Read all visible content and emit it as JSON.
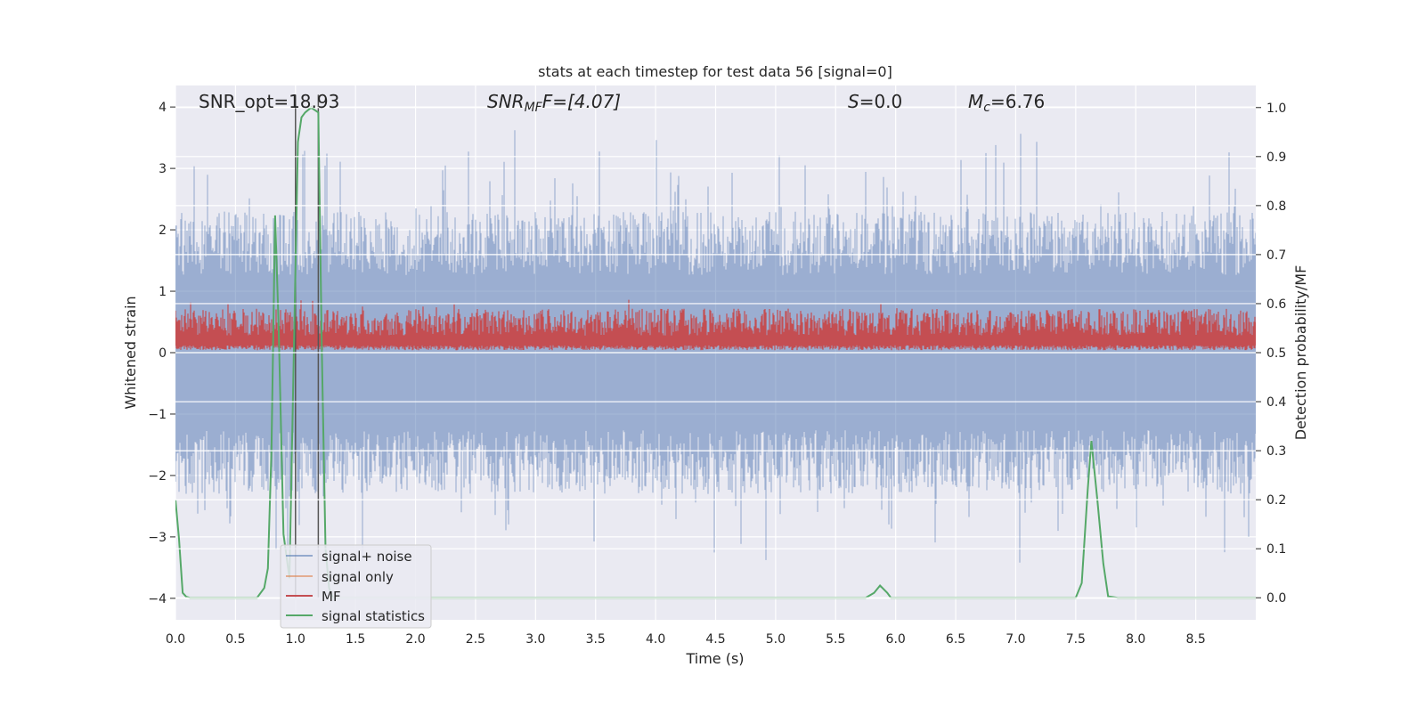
{
  "chart_data": {
    "type": "line",
    "title": "stats at each timestep for test data 56 [signal=0]",
    "xlabel": "Time (s)",
    "ylabel_left": "Whitened strain",
    "ylabel_right": "Detection probability/MF",
    "xlim": [
      0.0,
      9.0
    ],
    "ylim_left": [
      -4.35,
      4.35
    ],
    "ylim_right": [
      -0.045,
      1.045
    ],
    "x_ticks": [
      "0.0",
      "0.5",
      "1.0",
      "1.5",
      "2.0",
      "2.5",
      "3.0",
      "3.5",
      "4.0",
      "4.5",
      "5.0",
      "5.5",
      "6.0",
      "6.5",
      "7.0",
      "7.5",
      "8.0",
      "8.5"
    ],
    "x_tick_values": [
      0,
      0.5,
      1,
      1.5,
      2,
      2.5,
      3,
      3.5,
      4,
      4.5,
      5,
      5.5,
      6,
      6.5,
      7,
      7.5,
      8,
      8.5
    ],
    "y_left_ticks": [
      "−4",
      "−3",
      "−2",
      "−1",
      "0",
      "1",
      "2",
      "3",
      "4"
    ],
    "y_left_tick_values": [
      -4,
      -3,
      -2,
      -1,
      0,
      1,
      2,
      3,
      4
    ],
    "y_right_ticks": [
      "0.0",
      "0.1",
      "0.2",
      "0.3",
      "0.4",
      "0.5",
      "0.6",
      "0.7",
      "0.8",
      "0.9",
      "1.0"
    ],
    "y_right_tick_values": [
      0,
      0.1,
      0.2,
      0.3,
      0.4,
      0.5,
      0.6,
      0.7,
      0.8,
      0.9,
      1.0
    ],
    "grid": true,
    "legend_position": "lower-left",
    "annotations": {
      "snr_opt": "SNR_opt=18.93",
      "snr_mf_prefix": "SNR",
      "snr_mf_sub": "MF",
      "snr_mf_value": "F=[4.07]",
      "s_label": "S",
      "s_value": "=0.0",
      "mc_label": "M",
      "mc_sub": "c",
      "mc_value": "=6.76"
    },
    "vlines_x": [
      1.0,
      1.19
    ],
    "series": [
      {
        "name": "signal+ noise",
        "color": "#4c72b0",
        "axis": "left",
        "description_values": {
          "envelope_typical": 2.3,
          "peak_max": 4.0,
          "peak_min": -3.8
        }
      },
      {
        "name": "signal only",
        "color": "#dd8452",
        "axis": "left",
        "x": [],
        "y": []
      },
      {
        "name": "MF",
        "color": "#c44e52",
        "axis": "right",
        "description_values": {
          "low": 0.505,
          "high": 0.59
        }
      },
      {
        "name": "signal statistics",
        "color": "#55a868",
        "axis": "right",
        "x": [
          0.0,
          0.03,
          0.06,
          0.09,
          0.12,
          0.2,
          0.4,
          0.6,
          0.68,
          0.74,
          0.77,
          0.8,
          0.83,
          0.86,
          0.9,
          0.95,
          1.02,
          1.05,
          1.08,
          1.13,
          1.19,
          1.22,
          1.25,
          1.28,
          1.31,
          1.4,
          2.0,
          3.0,
          4.0,
          5.0,
          5.5,
          5.75,
          5.82,
          5.87,
          5.93,
          5.96,
          6.0,
          6.5,
          7.0,
          7.4,
          7.5,
          7.55,
          7.6,
          7.63,
          7.68,
          7.73,
          7.77,
          7.85,
          8.0,
          8.5,
          9.0
        ],
        "y": [
          0.2,
          0.12,
          0.01,
          0.002,
          0.0,
          0.0,
          0.0,
          0.0,
          0.0,
          0.02,
          0.06,
          0.3,
          0.78,
          0.55,
          0.13,
          0.04,
          0.93,
          0.98,
          0.99,
          1.0,
          0.99,
          0.5,
          0.1,
          0.02,
          0.0,
          0.0,
          0.0,
          0.0,
          0.0,
          0.0,
          0.0,
          0.0,
          0.01,
          0.025,
          0.01,
          0.0,
          0.0,
          0.0,
          0.0,
          0.0,
          0.0,
          0.03,
          0.22,
          0.32,
          0.2,
          0.07,
          0.003,
          0.0,
          0.0,
          0.0,
          0.0
        ]
      }
    ]
  }
}
